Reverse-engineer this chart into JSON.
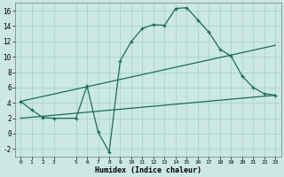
{
  "xlabel": "Humidex (Indice chaleur)",
  "bg_color": "#cce8e4",
  "grid_color": "#aad4cc",
  "line_color": "#1a6b5a",
  "xlim": [
    -0.5,
    23.5
  ],
  "ylim": [
    -3.0,
    17.0
  ],
  "xticks": [
    0,
    1,
    2,
    3,
    5,
    6,
    7,
    8,
    9,
    10,
    11,
    12,
    13,
    14,
    15,
    16,
    17,
    18,
    19,
    20,
    21,
    22,
    23
  ],
  "yticks": [
    -2,
    0,
    2,
    4,
    6,
    8,
    10,
    12,
    14,
    16
  ],
  "line1_x": [
    0,
    1,
    2,
    3,
    5,
    6,
    7,
    8,
    9,
    10,
    11,
    12,
    13,
    14,
    15,
    16,
    17,
    18,
    19,
    20,
    21,
    22,
    23
  ],
  "line1_y": [
    4.2,
    3.1,
    2.1,
    2.0,
    2.0,
    6.2,
    0.2,
    -2.4,
    9.5,
    12.0,
    13.7,
    14.2,
    14.1,
    16.3,
    16.4,
    14.8,
    13.2,
    11.0,
    10.1,
    7.5,
    6.0,
    5.2,
    5.0
  ],
  "line2_x": [
    0,
    23
  ],
  "line2_y": [
    4.2,
    11.5
  ],
  "line3_x": [
    0,
    23
  ],
  "line3_y": [
    2.0,
    5.0
  ]
}
